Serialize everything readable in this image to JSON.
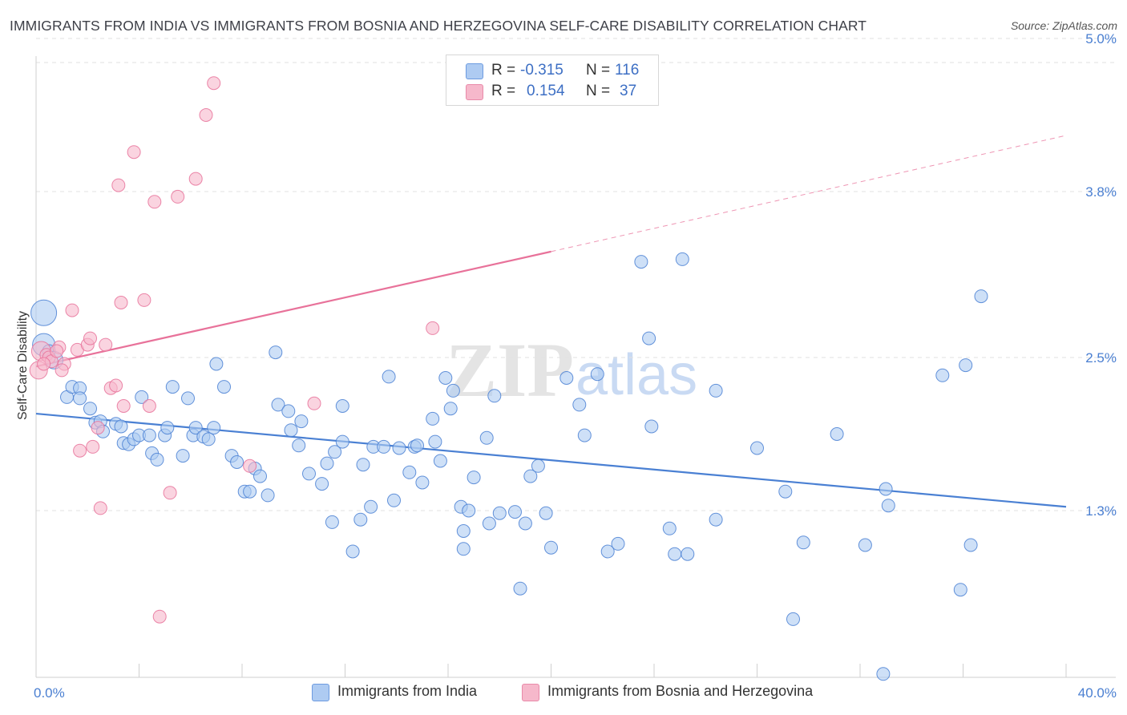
{
  "header": {
    "title": "IMMIGRANTS FROM INDIA VS IMMIGRANTS FROM BOSNIA AND HERZEGOVINA SELF-CARE DISABILITY CORRELATION CHART",
    "source": "Source: ZipAtlas.com"
  },
  "watermark": {
    "zip": "ZIP",
    "atlas": "atlas"
  },
  "legend": {
    "rows": [
      {
        "r_label": "R =",
        "r_value": "-0.315",
        "n_label": "N =",
        "n_value": "116",
        "color": "#aecbf2"
      },
      {
        "r_label": "R =",
        "r_value": "0.154",
        "n_label": "N =",
        "n_value": "37",
        "color": "#f6b8cb"
      }
    ]
  },
  "bottom_legend": [
    {
      "label": "Immigrants from India",
      "color": "#aecbf2"
    },
    {
      "label": "Immigrants from Bosnia and Herzegovina",
      "color": "#f6b8cb"
    }
  ],
  "chart_data": {
    "type": "scatter",
    "title": "IMMIGRANTS FROM INDIA VS IMMIGRANTS FROM BOSNIA AND HERZEGOVINA SELF-CARE DISABILITY CORRELATION CHART",
    "xlabel": "",
    "ylabel": "Self-Care Disability",
    "xlim": [
      0,
      40
    ],
    "ylim": [
      0,
      5.2
    ],
    "x_tick_labels": [
      "0.0%",
      "40.0%"
    ],
    "y_ticks": [
      1.3,
      2.5,
      3.8,
      5.0
    ],
    "y_tick_labels": [
      "1.3%",
      "2.5%",
      "3.8%",
      "5.0%"
    ],
    "grid": "horizontal dashed",
    "legend_position": "top-center",
    "series": [
      {
        "name": "Immigrants from India",
        "color": "#4a80d3",
        "fill": "#aecbf2",
        "trend": {
          "x": [
            0,
            40
          ],
          "y": [
            2.06,
            1.33
          ]
        },
        "points": [
          [
            0.3,
            2.85
          ],
          [
            0.3,
            2.6
          ],
          [
            0.5,
            2.55
          ],
          [
            0.7,
            2.48
          ],
          [
            1.2,
            2.19
          ],
          [
            1.4,
            2.27
          ],
          [
            1.7,
            2.26
          ],
          [
            1.7,
            2.18
          ],
          [
            2.1,
            2.1
          ],
          [
            2.3,
            1.99
          ],
          [
            2.5,
            2.0
          ],
          [
            2.6,
            1.92
          ],
          [
            3.1,
            1.98
          ],
          [
            3.3,
            1.96
          ],
          [
            3.4,
            1.83
          ],
          [
            3.6,
            1.82
          ],
          [
            3.8,
            1.86
          ],
          [
            4.0,
            1.89
          ],
          [
            4.1,
            2.19
          ],
          [
            4.4,
            1.89
          ],
          [
            4.5,
            1.75
          ],
          [
            4.7,
            1.7
          ],
          [
            5.0,
            1.89
          ],
          [
            5.1,
            1.95
          ],
          [
            5.3,
            2.27
          ],
          [
            5.7,
            1.73
          ],
          [
            5.9,
            2.18
          ],
          [
            6.1,
            1.89
          ],
          [
            6.2,
            1.95
          ],
          [
            6.5,
            1.88
          ],
          [
            6.7,
            1.86
          ],
          [
            6.9,
            1.95
          ],
          [
            7.0,
            2.45
          ],
          [
            7.3,
            2.27
          ],
          [
            7.6,
            1.73
          ],
          [
            7.8,
            1.68
          ],
          [
            8.1,
            1.45
          ],
          [
            8.3,
            1.45
          ],
          [
            8.5,
            1.63
          ],
          [
            8.7,
            1.57
          ],
          [
            9.0,
            1.42
          ],
          [
            9.3,
            2.54
          ],
          [
            9.4,
            2.13
          ],
          [
            9.8,
            2.08
          ],
          [
            9.9,
            1.93
          ],
          [
            10.2,
            1.81
          ],
          [
            10.3,
            2.0
          ],
          [
            10.6,
            1.59
          ],
          [
            11.1,
            1.51
          ],
          [
            11.3,
            1.67
          ],
          [
            11.5,
            1.21
          ],
          [
            11.6,
            1.76
          ],
          [
            11.9,
            1.84
          ],
          [
            11.9,
            2.12
          ],
          [
            12.3,
            0.98
          ],
          [
            12.6,
            1.23
          ],
          [
            12.7,
            1.66
          ],
          [
            13.0,
            1.33
          ],
          [
            13.1,
            1.8
          ],
          [
            13.5,
            1.8
          ],
          [
            13.7,
            2.35
          ],
          [
            13.9,
            1.38
          ],
          [
            14.1,
            1.79
          ],
          [
            14.5,
            1.6
          ],
          [
            14.7,
            1.8
          ],
          [
            14.8,
            1.81
          ],
          [
            15.0,
            1.52
          ],
          [
            15.4,
            2.02
          ],
          [
            15.5,
            1.84
          ],
          [
            15.7,
            1.69
          ],
          [
            15.9,
            2.34
          ],
          [
            16.2,
            2.24
          ],
          [
            16.1,
            2.1
          ],
          [
            16.5,
            1.33
          ],
          [
            16.6,
            1.14
          ],
          [
            16.6,
            1.0
          ],
          [
            16.8,
            1.3
          ],
          [
            17.0,
            1.56
          ],
          [
            17.5,
            1.87
          ],
          [
            17.6,
            1.2
          ],
          [
            17.8,
            2.2
          ],
          [
            18.0,
            1.28
          ],
          [
            18.6,
            1.29
          ],
          [
            18.8,
            0.69
          ],
          [
            19.0,
            1.2
          ],
          [
            19.2,
            1.57
          ],
          [
            19.5,
            1.65
          ],
          [
            19.8,
            1.28
          ],
          [
            20.0,
            1.01
          ],
          [
            20.6,
            2.34
          ],
          [
            21.1,
            2.13
          ],
          [
            21.3,
            1.89
          ],
          [
            21.8,
            2.37
          ],
          [
            22.2,
            0.98
          ],
          [
            22.6,
            1.04
          ],
          [
            23.5,
            3.25
          ],
          [
            23.8,
            2.65
          ],
          [
            23.9,
            1.96
          ],
          [
            24.6,
            1.16
          ],
          [
            24.8,
            0.96
          ],
          [
            25.1,
            3.27
          ],
          [
            25.3,
            0.96
          ],
          [
            26.4,
            1.23
          ],
          [
            26.4,
            2.24
          ],
          [
            28.0,
            1.79
          ],
          [
            29.1,
            1.45
          ],
          [
            29.8,
            1.05
          ],
          [
            31.1,
            1.9
          ],
          [
            32.2,
            1.03
          ],
          [
            33.1,
            1.34
          ],
          [
            33.0,
            1.47
          ],
          [
            35.2,
            2.36
          ],
          [
            35.9,
            0.68
          ],
          [
            36.1,
            2.44
          ],
          [
            36.3,
            1.03
          ],
          [
            36.7,
            2.98
          ],
          [
            32.9,
            0.02
          ],
          [
            29.4,
            0.45
          ]
        ]
      },
      {
        "name": "Immigrants from Bosnia and Herzegovina",
        "color": "#e8729a",
        "fill": "#f6b8cb",
        "trend": {
          "x": [
            0,
            20
          ],
          "y": [
            2.43,
            3.33
          ]
        },
        "trend_extension": {
          "x": [
            20,
            40
          ],
          "y": [
            3.33,
            4.24
          ]
        },
        "points": [
          [
            0.2,
            2.55
          ],
          [
            0.4,
            2.52
          ],
          [
            0.5,
            2.5
          ],
          [
            0.6,
            2.47
          ],
          [
            0.9,
            2.58
          ],
          [
            1.1,
            2.45
          ],
          [
            1.4,
            2.87
          ],
          [
            1.6,
            2.56
          ],
          [
            1.7,
            1.77
          ],
          [
            2.0,
            2.6
          ],
          [
            2.1,
            2.65
          ],
          [
            2.2,
            1.8
          ],
          [
            2.4,
            1.95
          ],
          [
            2.5,
            1.32
          ],
          [
            2.7,
            2.6
          ],
          [
            2.9,
            2.26
          ],
          [
            3.1,
            2.28
          ],
          [
            3.2,
            3.85
          ],
          [
            3.3,
            2.93
          ],
          [
            3.4,
            2.12
          ],
          [
            3.8,
            4.11
          ],
          [
            4.2,
            2.95
          ],
          [
            4.4,
            2.12
          ],
          [
            4.6,
            3.72
          ],
          [
            4.8,
            0.47
          ],
          [
            5.2,
            1.44
          ],
          [
            5.5,
            3.76
          ],
          [
            6.2,
            3.9
          ],
          [
            6.6,
            4.4
          ],
          [
            6.9,
            4.65
          ],
          [
            8.3,
            1.65
          ],
          [
            10.8,
            2.14
          ],
          [
            15.4,
            2.73
          ],
          [
            0.1,
            2.4
          ],
          [
            0.3,
            2.45
          ],
          [
            0.8,
            2.55
          ],
          [
            1.0,
            2.4
          ]
        ]
      }
    ]
  }
}
